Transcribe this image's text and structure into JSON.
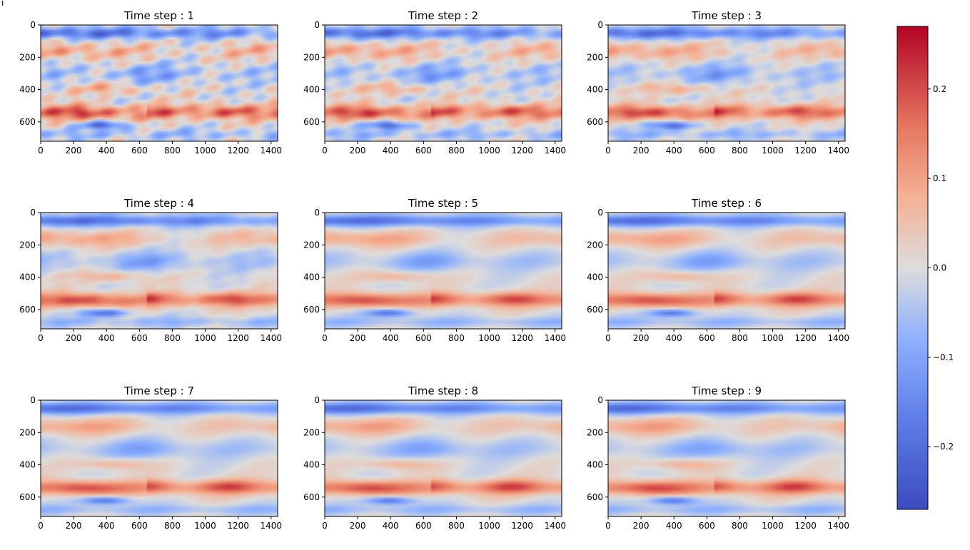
{
  "figure": {
    "corner_mark": "ĭ"
  },
  "chart_data": {
    "type": "heatmap",
    "colormap": "coolwarm",
    "colors": {
      "low": "#3b4cc0",
      "mid": "#dddddd",
      "high": "#b40426"
    },
    "clim": [
      -0.27,
      0.27
    ],
    "xlim": [
      0,
      1440
    ],
    "ylim": [
      720,
      0
    ],
    "x_ticks": [
      "0",
      "200",
      "400",
      "600",
      "800",
      "1000",
      "1200",
      "1400"
    ],
    "y_ticks": [
      "0",
      "200",
      "400",
      "600"
    ],
    "colorbar": {
      "ticks": [
        "0.2",
        "0.1",
        "0.0",
        "−0.1",
        "−0.2"
      ],
      "tick_values": [
        0.2,
        0.1,
        0.0,
        -0.1,
        -0.2
      ]
    },
    "panels": [
      {
        "title": "Time step : 1"
      },
      {
        "title": "Time step : 2"
      },
      {
        "title": "Time step : 3"
      },
      {
        "title": "Time step : 4"
      },
      {
        "title": "Time step : 5"
      },
      {
        "title": "Time step : 6"
      },
      {
        "title": "Time step : 7"
      },
      {
        "title": "Time step : 8"
      },
      {
        "title": "Time step : 9"
      }
    ]
  }
}
